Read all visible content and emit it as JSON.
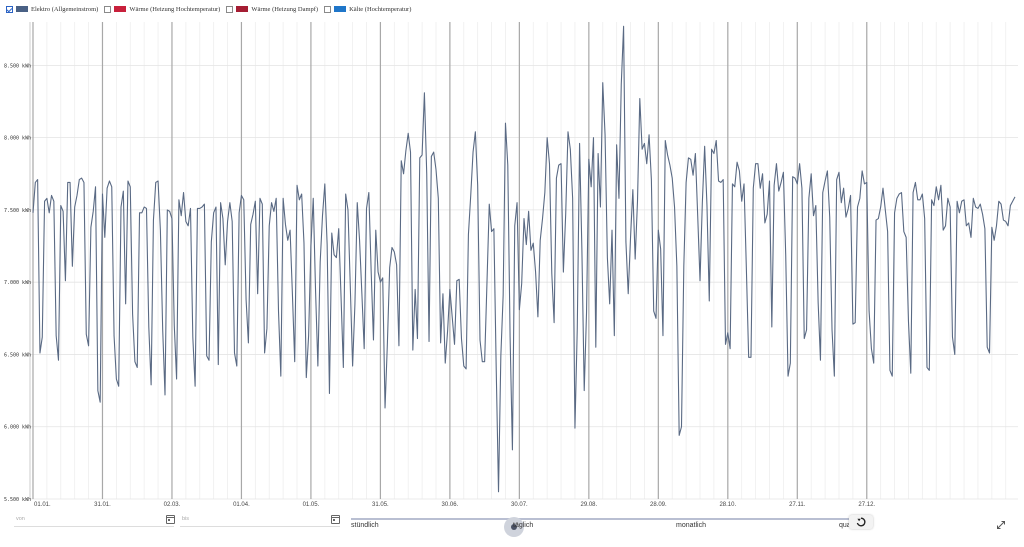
{
  "legend": [
    {
      "label": "Elektro (Allgemeinstrom)",
      "color": "#4a6185",
      "checked": true
    },
    {
      "label": "Wärme (Heizung Hochtemperatur)",
      "color": "#c8203c",
      "checked": false
    },
    {
      "label": "Wärme (Heizung Dampf)",
      "color": "#a51d33",
      "checked": false
    },
    {
      "label": "Kälte (Hochtemperatur)",
      "color": "#1f76c9",
      "checked": false
    }
  ],
  "chart_data": {
    "type": "line",
    "title": "",
    "xlabel": "",
    "ylabel": "",
    "ylim": [
      5500,
      8800
    ],
    "yticks": [
      5500,
      6000,
      6500,
      7000,
      7500,
      8000,
      8500
    ],
    "ytick_labels": [
      "5.500 kWh",
      "6.000 kWh",
      "6.500 kWh",
      "7.000 kWh",
      "7.500 kWh",
      "8.000 kWh",
      "8.500 kWh"
    ],
    "xticks": [
      "01.01.",
      "31.01.",
      "02.03.",
      "01.04.",
      "01.05.",
      "31.05.",
      "30.06.",
      "30.07.",
      "29.08.",
      "28.09.",
      "28.10.",
      "27.11.",
      "27.12."
    ],
    "xtick_days": [
      0,
      30,
      60,
      90,
      120,
      150,
      180,
      210,
      240,
      270,
      300,
      330,
      360
    ],
    "series": [
      {
        "name": "Elektro (Allgemeinstrom)",
        "color": "#5a6a84",
        "values": [
          7480,
          7690,
          7710,
          6510,
          6620,
          7560,
          7580,
          7480,
          7600,
          7560,
          6630,
          6460,
          7530,
          7490,
          7010,
          7690,
          7690,
          7110,
          7520,
          7600,
          7710,
          7720,
          7690,
          6640,
          6560,
          7380,
          7490,
          7660,
          6250,
          6170,
          7610,
          7310,
          7650,
          7700,
          7660,
          6630,
          6330,
          6280,
          7520,
          7630,
          6850,
          7700,
          7660,
          6780,
          6450,
          6410,
          7480,
          7480,
          7520,
          7510,
          6690,
          6290,
          7430,
          7690,
          7700,
          7360,
          6670,
          6220,
          7500,
          7490,
          7440,
          6700,
          6330,
          7570,
          7460,
          7620,
          7420,
          7390,
          7510,
          6620,
          6280,
          7510,
          7510,
          7520,
          7540,
          6490,
          6460,
          7280,
          7480,
          7520,
          6430,
          7550,
          7440,
          7120,
          7420,
          7550,
          7420,
          6510,
          6420,
          7480,
          7600,
          7570,
          6880,
          6580,
          7400,
          7470,
          7560,
          6920,
          7580,
          7540,
          6510,
          6680,
          7390,
          7550,
          7490,
          7580,
          6800,
          6350,
          7580,
          7400,
          7290,
          7360,
          6920,
          6450,
          7670,
          7570,
          7610,
          7270,
          6340,
          6630,
          7250,
          7580,
          6940,
          6420,
          7140,
          7460,
          7680,
          7260,
          6230,
          7340,
          7190,
          7170,
          7370,
          6900,
          6410,
          7610,
          7500,
          6970,
          6420,
          6850,
          7550,
          7290,
          6920,
          6540,
          7510,
          7620,
          7080,
          6600,
          7360,
          7070,
          7000,
          7030,
          6130,
          6570,
          7100,
          7240,
          7210,
          7120,
          6560,
          7840,
          7750,
          7910,
          8030,
          7900,
          6530,
          6950,
          6610,
          7860,
          7880,
          8310,
          7750,
          6590,
          7870,
          7900,
          7780,
          7580,
          6580,
          6920,
          6440,
          6660,
          6950,
          6760,
          6570,
          7010,
          7020,
          6610,
          6420,
          6400,
          7330,
          7600,
          7900,
          8040,
          7670,
          6600,
          6450,
          6450,
          6990,
          7540,
          7350,
          7370,
          6400,
          5550,
          6490,
          6910,
          8100,
          7810,
          6620,
          5840,
          7390,
          7550,
          6810,
          6990,
          7440,
          7260,
          7490,
          7220,
          7270,
          7070,
          6760,
          7290,
          7440,
          7620,
          8000,
          7820,
          7060,
          6720,
          7720,
          7810,
          7820,
          7070,
          7470,
          8040,
          7920,
          7580,
          5990,
          6680,
          7960,
          7220,
          6250,
          6790,
          7850,
          7660,
          8000,
          6550,
          7890,
          7520,
          8380,
          8020,
          7170,
          6850,
          7360,
          6630,
          7950,
          7580,
          8370,
          8770,
          7280,
          6920,
          7310,
          7640,
          7160,
          7560,
          8270,
          7920,
          7960,
          7820,
          8020,
          7710,
          6800,
          6750,
          7360,
          7230,
          6630,
          7980,
          7880,
          7810,
          7720,
          7520,
          7110,
          5940,
          6000,
          7110,
          7690,
          7860,
          7850,
          7740,
          7890,
          7460,
          7010,
          7550,
          7940,
          7530,
          6870,
          7920,
          7890,
          7980,
          7700,
          7690,
          7710,
          6570,
          6650,
          6540,
          7680,
          7660,
          7830,
          7770,
          7560,
          7680,
          7100,
          6480,
          6480,
          7650,
          7820,
          7820,
          7650,
          7750,
          7410,
          7470,
          7700,
          6690,
          7670,
          7820,
          7630,
          7690,
          7760,
          7190,
          6350,
          6440,
          7730,
          7720,
          7680,
          7820,
          7650,
          6610,
          6670,
          7580,
          7750,
          7460,
          7530,
          6860,
          6460,
          7620,
          7700,
          7770,
          7450,
          6670,
          6350,
          7710,
          7760,
          7550,
          7650,
          7450,
          7510,
          7600,
          6710,
          6720,
          7520,
          7580,
          7770,
          7680,
          7690,
          6800,
          6540,
          6440,
          7430,
          7440,
          7520,
          7650,
          7500,
          7350,
          6390,
          6350,
          7480,
          7580,
          7610,
          7620,
          7350,
          7310,
          6730,
          6370,
          7620,
          7690,
          7570,
          7570,
          7610,
          7440,
          6410,
          6390,
          7570,
          7530,
          7660,
          7570,
          7670,
          7360,
          7390,
          7580,
          7520,
          6620,
          6500,
          7560,
          7480,
          7560,
          7570,
          7390,
          7410,
          7310,
          7580,
          7520,
          7510,
          7540,
          7470,
          7370,
          6550,
          6510,
          7380,
          7290,
          7390,
          7560,
          7540,
          7430,
          7420,
          7390,
          7530,
          7560,
          7590
        ]
      }
    ]
  },
  "controls": {
    "from_placeholder": "von",
    "to_placeholder": "bis",
    "granularity": [
      "stündlich",
      "täglich",
      "monatlich",
      "quartalsweise"
    ],
    "granularity_visible": [
      "stündlich",
      "täglich",
      "monatlich",
      "quar"
    ],
    "selected": "täglich",
    "icons": {
      "calendar": "calendar-icon",
      "reset": "reset-icon",
      "expand": "expand-icon"
    }
  }
}
